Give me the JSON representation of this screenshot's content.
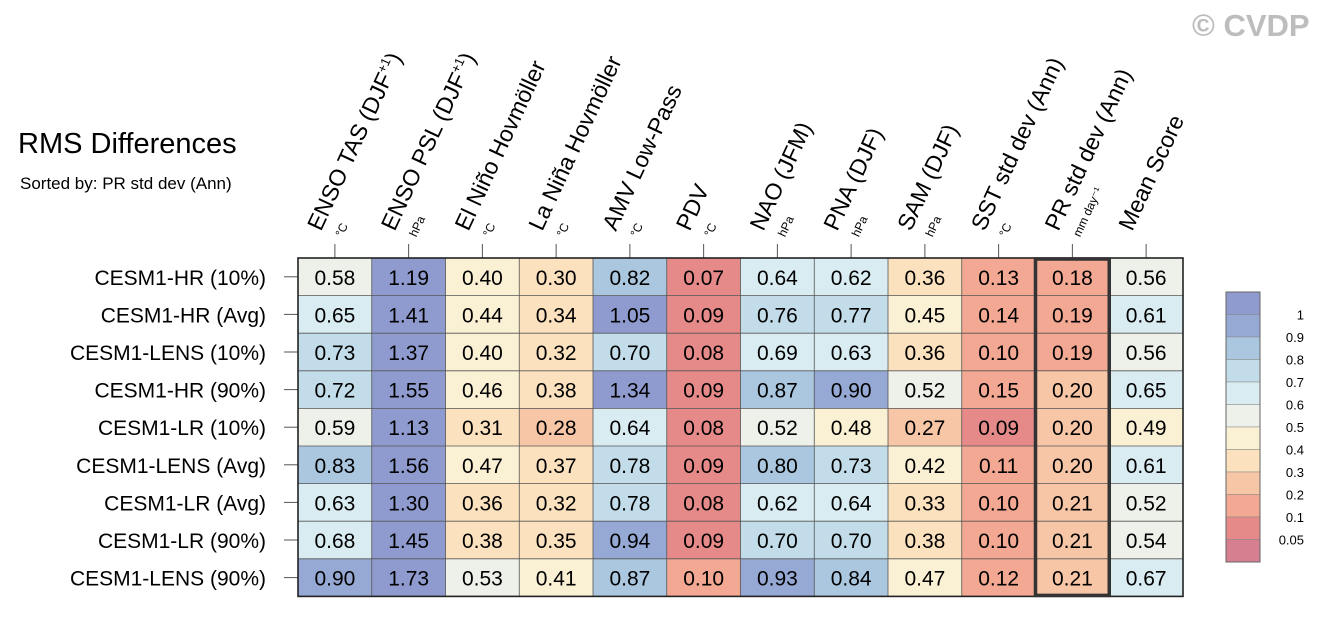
{
  "title": "RMS Differences",
  "subtitle": "Sorted by: PR std dev (Ann)",
  "watermark": "© CVDP",
  "chart_data": {
    "type": "heatmap",
    "columns": [
      {
        "label": "ENSO TAS (DJF",
        "sup": "+1",
        "close": ")",
        "unit": "°C"
      },
      {
        "label": "ENSO PSL (DJF",
        "sup": "+1",
        "close": ")",
        "unit": "hPa"
      },
      {
        "label": "El Niño Hovmöller",
        "sup": "",
        "close": "",
        "unit": "°C"
      },
      {
        "label": "La Niña Hovmöller",
        "sup": "",
        "close": "",
        "unit": "°C"
      },
      {
        "label": "AMV Low-Pass",
        "sup": "",
        "close": "",
        "unit": "°C"
      },
      {
        "label": "PDV",
        "sup": "",
        "close": "",
        "unit": "°C"
      },
      {
        "label": "NAO (JFM)",
        "sup": "",
        "close": "",
        "unit": "hPa"
      },
      {
        "label": "PNA (DJF)",
        "sup": "",
        "close": "",
        "unit": "hPa"
      },
      {
        "label": "SAM (DJF)",
        "sup": "",
        "close": "",
        "unit": "hPa"
      },
      {
        "label": "SST std dev (Ann)",
        "sup": "",
        "close": "",
        "unit": "°C"
      },
      {
        "label": "PR std dev (Ann)",
        "sup": "",
        "close": "",
        "unit": "mm day⁻¹"
      },
      {
        "label": "Mean Score",
        "sup": "",
        "close": "",
        "unit": ""
      }
    ],
    "rows": [
      {
        "name": "CESM1-HR (10%)",
        "values": [
          0.58,
          1.19,
          0.4,
          0.3,
          0.82,
          0.07,
          0.64,
          0.62,
          0.36,
          0.13,
          0.18,
          0.56
        ]
      },
      {
        "name": "CESM1-HR (Avg)",
        "values": [
          0.65,
          1.41,
          0.44,
          0.34,
          1.05,
          0.09,
          0.76,
          0.77,
          0.45,
          0.14,
          0.19,
          0.61
        ]
      },
      {
        "name": "CESM1-LENS (10%)",
        "values": [
          0.73,
          1.37,
          0.4,
          0.32,
          0.7,
          0.08,
          0.69,
          0.63,
          0.36,
          0.1,
          0.19,
          0.56
        ]
      },
      {
        "name": "CESM1-HR (90%)",
        "values": [
          0.72,
          1.55,
          0.46,
          0.38,
          1.34,
          0.09,
          0.87,
          0.9,
          0.52,
          0.15,
          0.2,
          0.65
        ]
      },
      {
        "name": "CESM1-LR (10%)",
        "values": [
          0.59,
          1.13,
          0.31,
          0.28,
          0.64,
          0.08,
          0.52,
          0.48,
          0.27,
          0.09,
          0.2,
          0.49
        ]
      },
      {
        "name": "CESM1-LENS (Avg)",
        "values": [
          0.83,
          1.56,
          0.47,
          0.37,
          0.78,
          0.09,
          0.8,
          0.73,
          0.42,
          0.11,
          0.2,
          0.61
        ]
      },
      {
        "name": "CESM1-LR (Avg)",
        "values": [
          0.63,
          1.3,
          0.36,
          0.32,
          0.78,
          0.08,
          0.62,
          0.64,
          0.33,
          0.1,
          0.21,
          0.52
        ]
      },
      {
        "name": "CESM1-LR (90%)",
        "values": [
          0.68,
          1.45,
          0.38,
          0.35,
          0.94,
          0.09,
          0.7,
          0.7,
          0.38,
          0.1,
          0.21,
          0.54
        ]
      },
      {
        "name": "CESM1-LENS (90%)",
        "values": [
          0.9,
          1.73,
          0.53,
          0.41,
          0.87,
          0.1,
          0.93,
          0.84,
          0.47,
          0.12,
          0.21,
          0.67
        ]
      }
    ],
    "highlighted_column": "PR std dev (Ann)",
    "colorbar": {
      "levels": [
        "0.05",
        "0.1",
        "0.2",
        "0.3",
        "0.4",
        "0.5",
        "0.6",
        "0.7",
        "0.8",
        "0.9",
        "1"
      ],
      "colors": [
        "#d67f91",
        "#e58a88",
        "#f2a892",
        "#f7c6a6",
        "#fbe1bd",
        "#faf1d5",
        "#eef0ea",
        "#d9ecf2",
        "#c2dde9",
        "#aac7df",
        "#96a9d4",
        "#8f9bce"
      ]
    }
  }
}
